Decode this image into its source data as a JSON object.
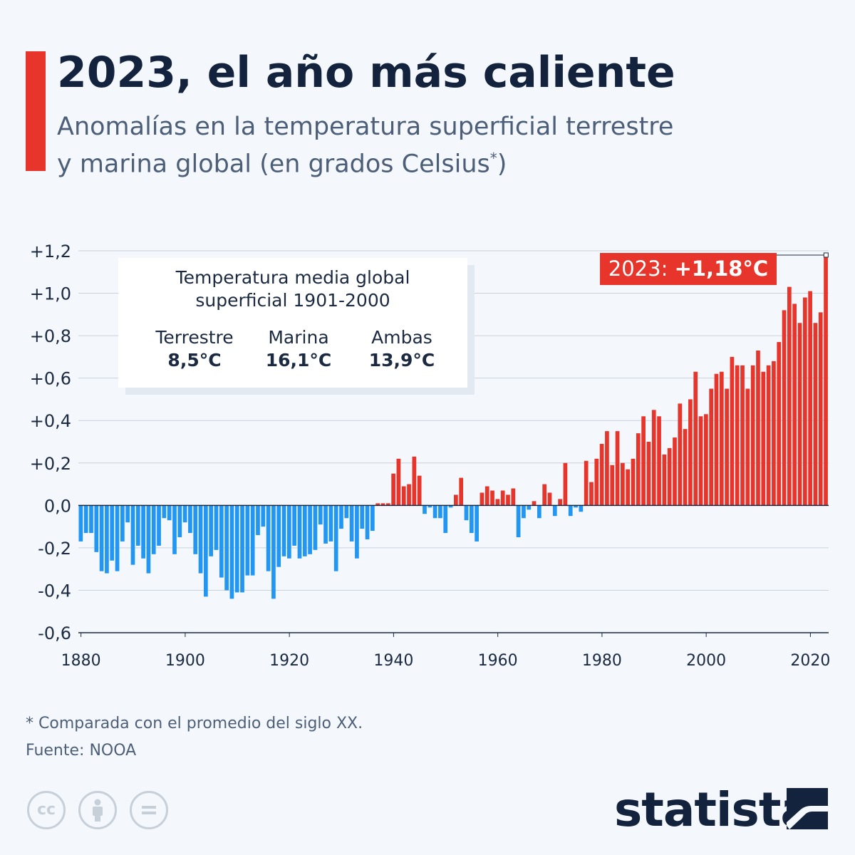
{
  "header": {
    "title": "2023, el año más caliente",
    "subtitle_line1": "Anomalías en la temperatura superficial terrestre",
    "subtitle_line2": "y marina global (en grados Celsius",
    "subtitle_sup": "*",
    "subtitle_end": ")"
  },
  "info_box": {
    "title_line1": "Temperatura media global",
    "title_line2": "superficial 1901-2000",
    "columns": [
      {
        "label": "Terrestre",
        "value": "8,5°C"
      },
      {
        "label": "Marina",
        "value": "16,1°C"
      },
      {
        "label": "Ambas",
        "value": "13,9°C"
      }
    ]
  },
  "callout": {
    "prefix": "2023: ",
    "value": "+1,18°C"
  },
  "footer": {
    "note": "* Comparada con el promedio del siglo XX.",
    "source": "Fuente: NOOA"
  },
  "brand": {
    "name": "statista"
  },
  "icons": [
    "cc-license-icon",
    "attribution-icon",
    "no-derivatives-icon",
    "statista-logo-icon"
  ],
  "colors": {
    "accent": "#e8352b",
    "positive": "#e8352b",
    "negative": "#2196f3",
    "title": "#13233d"
  },
  "chart_data": {
    "type": "bar",
    "x_start": 1880,
    "x_end": 2023,
    "ylim": [
      -0.6,
      1.2
    ],
    "yticks": [
      1.2,
      1.0,
      0.8,
      0.6,
      0.4,
      0.2,
      0.0,
      -0.2,
      -0.4,
      -0.6
    ],
    "ytick_labels": [
      "+1,2",
      "+1,0",
      "+0,8",
      "+0,6",
      "+0,4",
      "+0,2",
      "0,0",
      "-0,2",
      "-0,4",
      "-0,6"
    ],
    "xticks": [
      1880,
      1900,
      1920,
      1940,
      1960,
      1980,
      2000,
      2020
    ],
    "xtick_labels": [
      "1880",
      "1900",
      "1920",
      "1940",
      "1960",
      "1980",
      "2000",
      "2020"
    ],
    "grid": true,
    "values": [
      -0.17,
      -0.13,
      -0.13,
      -0.22,
      -0.31,
      -0.32,
      -0.26,
      -0.31,
      -0.17,
      -0.08,
      -0.28,
      -0.19,
      -0.25,
      -0.32,
      -0.23,
      -0.19,
      -0.06,
      -0.07,
      -0.23,
      -0.15,
      -0.08,
      -0.13,
      -0.23,
      -0.32,
      -0.43,
      -0.24,
      -0.21,
      -0.34,
      -0.4,
      -0.44,
      -0.41,
      -0.41,
      -0.33,
      -0.33,
      -0.14,
      -0.1,
      -0.31,
      -0.44,
      -0.29,
      -0.24,
      -0.25,
      -0.19,
      -0.25,
      -0.24,
      -0.23,
      -0.21,
      -0.09,
      -0.18,
      -0.17,
      -0.31,
      -0.11,
      -0.06,
      -0.17,
      -0.25,
      -0.11,
      -0.16,
      -0.12,
      0.01,
      0.01,
      0.01,
      0.15,
      0.22,
      0.09,
      0.1,
      0.23,
      0.14,
      -0.04,
      -0.01,
      -0.06,
      -0.06,
      -0.13,
      -0.01,
      0.05,
      0.13,
      -0.07,
      -0.13,
      -0.17,
      0.06,
      0.09,
      0.07,
      0.03,
      0.07,
      0.05,
      0.08,
      -0.15,
      -0.06,
      -0.02,
      0.02,
      -0.06,
      0.1,
      0.06,
      -0.05,
      0.03,
      0.2,
      -0.05,
      -0.01,
      -0.03,
      0.21,
      0.11,
      0.22,
      0.29,
      0.35,
      0.19,
      0.35,
      0.2,
      0.17,
      0.22,
      0.34,
      0.42,
      0.3,
      0.45,
      0.42,
      0.24,
      0.27,
      0.32,
      0.48,
      0.36,
      0.5,
      0.63,
      0.42,
      0.43,
      0.55,
      0.62,
      0.63,
      0.55,
      0.7,
      0.66,
      0.66,
      0.55,
      0.66,
      0.73,
      0.63,
      0.66,
      0.68,
      0.77,
      0.92,
      1.03,
      0.95,
      0.86,
      0.98,
      1.01,
      0.86,
      0.91,
      1.18
    ]
  }
}
